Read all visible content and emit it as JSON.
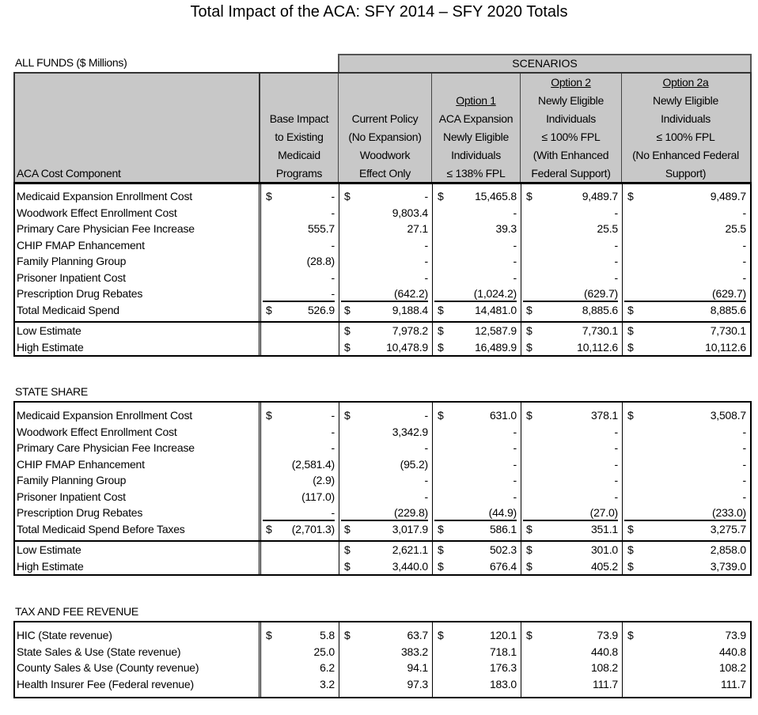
{
  "title": "Total Impact of the ACA:  SFY 2014 – SFY 2020 Totals",
  "all_funds_label": "ALL FUNDS ($ Millions)",
  "scenarios_label": "SCENARIOS",
  "headers": [
    {
      "lines": [
        "ACA Cost Component"
      ]
    },
    {
      "lines": [
        "Base Impact",
        "to Existing",
        "Medicaid",
        "Programs"
      ]
    },
    {
      "lines": [
        "Current Policy",
        "(No Expansion)",
        "Woodwork",
        "Effect Only"
      ]
    },
    {
      "title": "Option 1",
      "lines": [
        "ACA Expansion",
        "Newly Eligible",
        "Individuals",
        "≤ 138% FPL"
      ]
    },
    {
      "title": "Option 2",
      "lines": [
        "Newly Eligible",
        "Individuals",
        "≤ 100% FPL",
        "(With Enhanced",
        "Federal Support)"
      ]
    },
    {
      "title": "Option 2a",
      "lines": [
        "Newly Eligible",
        "Individuals",
        "≤ 100% FPL",
        "(No Enhanced Federal",
        "Support)"
      ]
    }
  ],
  "sections": [
    {
      "title": "",
      "rows": [
        {
          "label": "Medicaid Expansion Enrollment Cost",
          "cells": [
            [
              "$",
              "-"
            ],
            [
              "$",
              "-"
            ],
            [
              "$",
              "15,465.8"
            ],
            [
              "$",
              "9,489.7"
            ],
            [
              "$",
              "9,489.7"
            ]
          ]
        },
        {
          "label": "Woodwork Effect Enrollment Cost",
          "cells": [
            [
              "",
              "-"
            ],
            [
              "",
              "9,803.4"
            ],
            [
              "",
              "-"
            ],
            [
              "",
              "-"
            ],
            [
              "",
              "-"
            ]
          ]
        },
        {
          "label": "Primary Care Physician Fee Increase",
          "cells": [
            [
              "",
              "555.7"
            ],
            [
              "",
              "27.1"
            ],
            [
              "",
              "39.3"
            ],
            [
              "",
              "25.5"
            ],
            [
              "",
              "25.5"
            ]
          ]
        },
        {
          "label": "CHIP FMAP Enhancement",
          "cells": [
            [
              "",
              "-"
            ],
            [
              "",
              "-"
            ],
            [
              "",
              "-"
            ],
            [
              "",
              "-"
            ],
            [
              "",
              "-"
            ]
          ]
        },
        {
          "label": "Family Planning Group",
          "cells": [
            [
              "",
              "(28.8)"
            ],
            [
              "",
              "-"
            ],
            [
              "",
              "-"
            ],
            [
              "",
              "-"
            ],
            [
              "",
              "-"
            ]
          ]
        },
        {
          "label": "Prisoner Inpatient Cost",
          "cells": [
            [
              "",
              "-"
            ],
            [
              "",
              "-"
            ],
            [
              "",
              "-"
            ],
            [
              "",
              "-"
            ],
            [
              "",
              "-"
            ]
          ]
        },
        {
          "label": "Prescription Drug Rebates",
          "cells": [
            [
              "",
              "-"
            ],
            [
              "",
              "(642.2)"
            ],
            [
              "",
              "(1,024.2)"
            ],
            [
              "",
              "(629.7)"
            ],
            [
              "",
              "(629.7)"
            ]
          ]
        },
        {
          "label": "Total Medicaid Spend",
          "cells": [
            [
              "$",
              "526.9"
            ],
            [
              "$",
              "9,188.4"
            ],
            [
              "$",
              "14,481.0"
            ],
            [
              "$",
              "8,885.6"
            ],
            [
              "$",
              "8,885.6"
            ]
          ]
        }
      ],
      "estimates": [
        {
          "label": "Low Estimate",
          "cells": [
            [
              "",
              ""
            ],
            [
              "$",
              "7,978.2"
            ],
            [
              "$",
              "12,587.9"
            ],
            [
              "$",
              "7,730.1"
            ],
            [
              "$",
              "7,730.1"
            ]
          ]
        },
        {
          "label": "High Estimate",
          "cells": [
            [
              "",
              ""
            ],
            [
              "$",
              "10,478.9"
            ],
            [
              "$",
              "16,489.9"
            ],
            [
              "$",
              "10,112.6"
            ],
            [
              "$",
              "10,112.6"
            ]
          ]
        }
      ]
    },
    {
      "title": "STATE SHARE",
      "rows": [
        {
          "label": "Medicaid Expansion Enrollment Cost",
          "cells": [
            [
              "$",
              "-"
            ],
            [
              "$",
              "-"
            ],
            [
              "$",
              "631.0"
            ],
            [
              "$",
              "378.1"
            ],
            [
              "$",
              "3,508.7"
            ]
          ]
        },
        {
          "label": "Woodwork Effect Enrollment Cost",
          "cells": [
            [
              "",
              "-"
            ],
            [
              "",
              "3,342.9"
            ],
            [
              "",
              "-"
            ],
            [
              "",
              "-"
            ],
            [
              "",
              "-"
            ]
          ]
        },
        {
          "label": "Primary Care Physician Fee Increase",
          "cells": [
            [
              "",
              "-"
            ],
            [
              "",
              "-"
            ],
            [
              "",
              "-"
            ],
            [
              "",
              "-"
            ],
            [
              "",
              "-"
            ]
          ]
        },
        {
          "label": "CHIP FMAP Enhancement",
          "cells": [
            [
              "",
              "(2,581.4)"
            ],
            [
              "",
              "(95.2)"
            ],
            [
              "",
              "-"
            ],
            [
              "",
              "-"
            ],
            [
              "",
              "-"
            ]
          ]
        },
        {
          "label": "Family Planning Group",
          "cells": [
            [
              "",
              "(2.9)"
            ],
            [
              "",
              "-"
            ],
            [
              "",
              "-"
            ],
            [
              "",
              "-"
            ],
            [
              "",
              "-"
            ]
          ]
        },
        {
          "label": "Prisoner Inpatient Cost",
          "cells": [
            [
              "",
              "(117.0)"
            ],
            [
              "",
              "-"
            ],
            [
              "",
              "-"
            ],
            [
              "",
              "-"
            ],
            [
              "",
              "-"
            ]
          ]
        },
        {
          "label": "Prescription Drug Rebates",
          "cells": [
            [
              "",
              "-"
            ],
            [
              "",
              "(229.8)"
            ],
            [
              "",
              "(44.9)"
            ],
            [
              "",
              "(27.0)"
            ],
            [
              "",
              "(233.0)"
            ]
          ]
        },
        {
          "label": "Total Medicaid Spend Before Taxes",
          "cells": [
            [
              "$",
              "(2,701.3)"
            ],
            [
              "$",
              "3,017.9"
            ],
            [
              "$",
              "586.1"
            ],
            [
              "$",
              "351.1"
            ],
            [
              "$",
              "3,275.7"
            ]
          ]
        }
      ],
      "estimates": [
        {
          "label": "Low Estimate",
          "cells": [
            [
              "",
              ""
            ],
            [
              "$",
              "2,621.1"
            ],
            [
              "$",
              "502.3"
            ],
            [
              "$",
              "301.0"
            ],
            [
              "$",
              "2,858.0"
            ]
          ]
        },
        {
          "label": "High Estimate",
          "cells": [
            [
              "",
              ""
            ],
            [
              "$",
              "3,440.0"
            ],
            [
              "$",
              "676.4"
            ],
            [
              "$",
              "405.2"
            ],
            [
              "$",
              "3,739.0"
            ]
          ]
        }
      ]
    },
    {
      "title": "TAX AND FEE REVENUE",
      "rows": [
        {
          "label": "HIC (State revenue)",
          "cells": [
            [
              "$",
              "5.8"
            ],
            [
              "$",
              "63.7"
            ],
            [
              "$",
              "120.1"
            ],
            [
              "$",
              "73.9"
            ],
            [
              "$",
              "73.9"
            ]
          ]
        },
        {
          "label": "State Sales & Use (State revenue)",
          "cells": [
            [
              "",
              "25.0"
            ],
            [
              "",
              "383.2"
            ],
            [
              "",
              "718.1"
            ],
            [
              "",
              "440.8"
            ],
            [
              "",
              "440.8"
            ]
          ]
        },
        {
          "label": "County Sales & Use (County revenue)",
          "cells": [
            [
              "",
              "6.2"
            ],
            [
              "",
              "94.1"
            ],
            [
              "",
              "176.3"
            ],
            [
              "",
              "108.2"
            ],
            [
              "",
              "108.2"
            ]
          ]
        },
        {
          "label": "Health Insurer Fee (Federal revenue)",
          "cells": [
            [
              "",
              "3.2"
            ],
            [
              "",
              "97.3"
            ],
            [
              "",
              "183.0"
            ],
            [
              "",
              "111.7"
            ],
            [
              "",
              "111.7"
            ]
          ]
        }
      ],
      "estimates": []
    }
  ]
}
